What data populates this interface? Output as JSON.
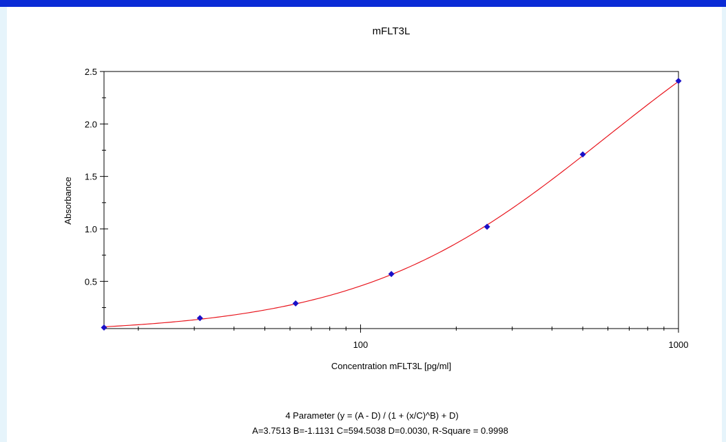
{
  "chart_data": {
    "type": "scatter",
    "title": "mFLT3L",
    "xlabel": "Concentration mFLT3L [pg/ml]",
    "ylabel": "Absorbance",
    "x_scale": "log",
    "xlim": [
      15.6,
      1000
    ],
    "ylim": [
      0.05,
      2.5
    ],
    "x_ticks": [
      100,
      1000
    ],
    "y_ticks": [
      0.5,
      1.0,
      1.5,
      2.0,
      2.5
    ],
    "y_tick_labels": [
      "0.5",
      "1.0",
      "1.5",
      "2.0",
      "2.5"
    ],
    "x_tick_labels": [
      "100",
      "1000"
    ],
    "series": [
      {
        "x": [
          15.6,
          31.25,
          62.5,
          125,
          250,
          500,
          1000
        ],
        "y": [
          0.06,
          0.15,
          0.29,
          0.57,
          1.02,
          1.71,
          2.41
        ]
      }
    ],
    "fit": {
      "A": 3.7513,
      "B": -1.1131,
      "C": 594.5038,
      "D": 0.003
    },
    "colors": {
      "points": "#1a10c8",
      "curve": "#e8141c"
    },
    "footer_line1": "4 Parameter (y = (A - D) / (1 + (x/C)^B) + D)",
    "footer_line2": "A=3.7513  B=-1.1131  C=594.5038  D=0.0030, R-Square = 0.9998"
  }
}
